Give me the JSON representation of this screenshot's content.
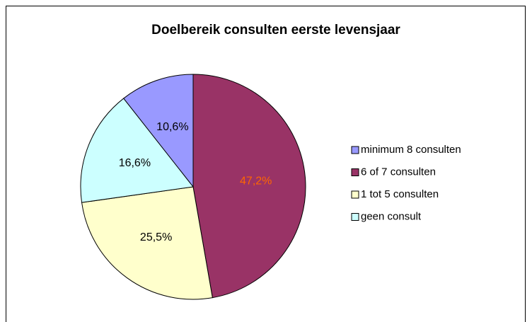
{
  "chart_data": {
    "type": "pie",
    "title": "Doelbereik consulten eerste levensjaar",
    "categories": [
      "minimum 8 consulten",
      "6 of 7 consulten",
      "1 tot 5 consulten",
      "geen consult"
    ],
    "values": [
      10.6,
      47.2,
      25.5,
      16.6
    ],
    "value_labels": [
      "10,6%",
      "47,2%",
      "25,5%",
      "16,6%"
    ],
    "colors": [
      "#9999ff",
      "#993366",
      "#ffffcc",
      "#ccffff"
    ],
    "label_colors": [
      "#000000",
      "#ff6600",
      "#000000",
      "#000000"
    ],
    "legend": "right"
  }
}
